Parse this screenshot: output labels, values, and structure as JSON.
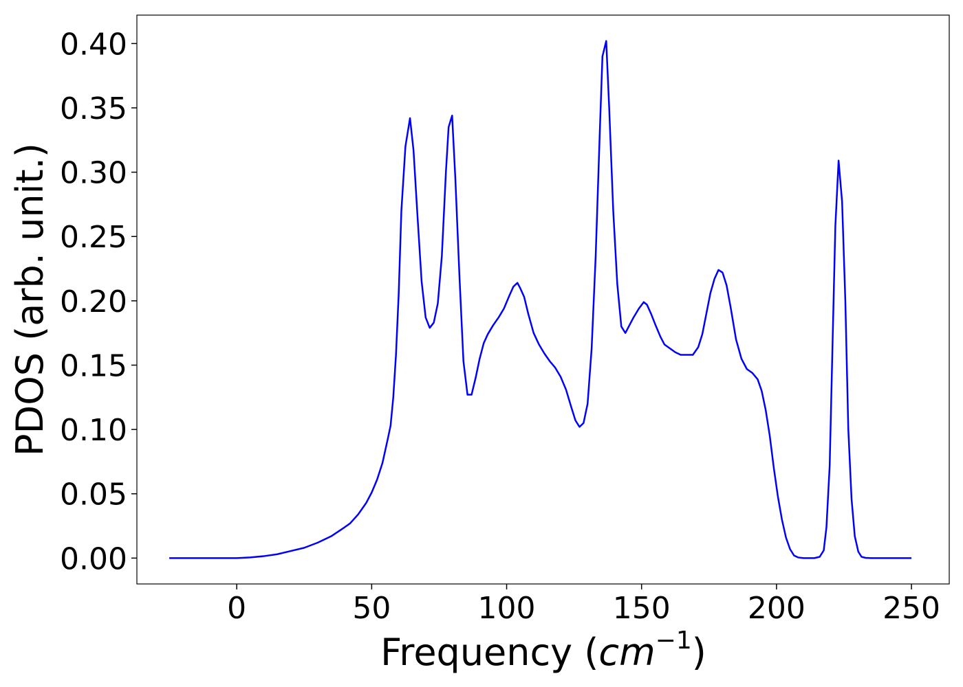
{
  "chart_data": {
    "type": "line",
    "xlabel_parts": [
      "Frequency (",
      "cm",
      "−1",
      ")"
    ],
    "ylabel": "PDOS (arb. unit.)",
    "xlim": [
      -37,
      264
    ],
    "ylim": [
      -0.0201,
      0.4221
    ],
    "xticks": [
      0,
      50,
      100,
      150,
      200,
      250
    ],
    "yticks": [
      {
        "value": 0,
        "label": "0.00"
      },
      {
        "value": 0.05,
        "label": "0.05"
      },
      {
        "value": 0.1,
        "label": "0.10"
      },
      {
        "value": 0.15,
        "label": "0.15"
      },
      {
        "value": 0.2,
        "label": "0.20"
      },
      {
        "value": 0.25,
        "label": "0.25"
      },
      {
        "value": 0.3,
        "label": "0.30"
      },
      {
        "value": 0.35,
        "label": "0.35"
      },
      {
        "value": 0.4,
        "label": "0.40"
      }
    ],
    "grid": false,
    "x": [
      -25,
      -15,
      -5,
      0,
      5,
      10,
      15,
      20,
      25,
      30,
      35,
      40,
      42,
      45,
      48,
      50,
      52,
      54,
      56,
      57,
      58,
      59,
      60,
      61,
      62.5,
      64.2,
      65.5,
      67,
      68.5,
      70,
      71.5,
      73,
      74.5,
      76,
      77.5,
      78.5,
      79.8,
      81,
      82.5,
      84,
      85.5,
      87,
      88.5,
      90,
      91.5,
      93,
      95,
      97,
      99,
      101,
      102.5,
      104,
      105,
      106.5,
      108,
      110,
      112,
      114,
      116,
      118,
      120,
      122,
      124,
      125.5,
      127,
      128.5,
      130,
      131.5,
      133,
      134.5,
      135.5,
      136.9,
      138,
      139.5,
      141,
      142.5,
      144,
      145.5,
      147,
      149,
      150.8,
      152,
      153.5,
      155,
      157,
      158.5,
      160.5,
      162.5,
      164.5,
      167,
      169,
      171,
      172.5,
      174,
      175.5,
      177,
      178.5,
      180,
      181.5,
      183,
      185,
      187,
      189,
      191,
      193,
      194.5,
      196,
      197.5,
      199,
      200.5,
      202,
      203.5,
      205,
      206.5,
      208,
      210,
      214,
      216,
      217.5,
      218.5,
      219.7,
      220.8,
      221.8,
      223,
      224.3,
      225.5,
      226.6,
      227.8,
      229,
      230.3,
      231.5,
      233,
      235,
      240,
      245,
      250
    ],
    "series": [
      {
        "name": "PDOS",
        "color": "#0000ff",
        "values": [
          0,
          0,
          0,
          0,
          0.0005,
          0.0015,
          0.003,
          0.0055,
          0.008,
          0.012,
          0.017,
          0.024,
          0.027,
          0.034,
          0.043,
          0.051,
          0.061,
          0.074,
          0.093,
          0.103,
          0.125,
          0.158,
          0.205,
          0.27,
          0.32,
          0.342,
          0.317,
          0.265,
          0.215,
          0.187,
          0.179,
          0.183,
          0.198,
          0.235,
          0.3,
          0.335,
          0.344,
          0.295,
          0.22,
          0.153,
          0.127,
          0.127,
          0.14,
          0.155,
          0.167,
          0.174,
          0.181,
          0.187,
          0.194,
          0.204,
          0.211,
          0.214,
          0.21,
          0.203,
          0.19,
          0.175,
          0.166,
          0.159,
          0.153,
          0.148,
          0.141,
          0.131,
          0.117,
          0.107,
          0.102,
          0.105,
          0.12,
          0.163,
          0.235,
          0.33,
          0.39,
          0.402,
          0.35,
          0.27,
          0.213,
          0.18,
          0.175,
          0.181,
          0.187,
          0.194,
          0.199,
          0.197,
          0.19,
          0.182,
          0.172,
          0.166,
          0.163,
          0.16,
          0.158,
          0.158,
          0.158,
          0.164,
          0.174,
          0.19,
          0.206,
          0.217,
          0.224,
          0.222,
          0.212,
          0.195,
          0.17,
          0.155,
          0.147,
          0.144,
          0.139,
          0.13,
          0.115,
          0.095,
          0.07,
          0.048,
          0.03,
          0.016,
          0.007,
          0.002,
          0.0005,
          0,
          0,
          0.001,
          0.006,
          0.024,
          0.072,
          0.17,
          0.258,
          0.309,
          0.277,
          0.2,
          0.1,
          0.046,
          0.017,
          0.005,
          0.001,
          0.0002,
          0,
          0,
          0,
          0
        ]
      }
    ]
  }
}
